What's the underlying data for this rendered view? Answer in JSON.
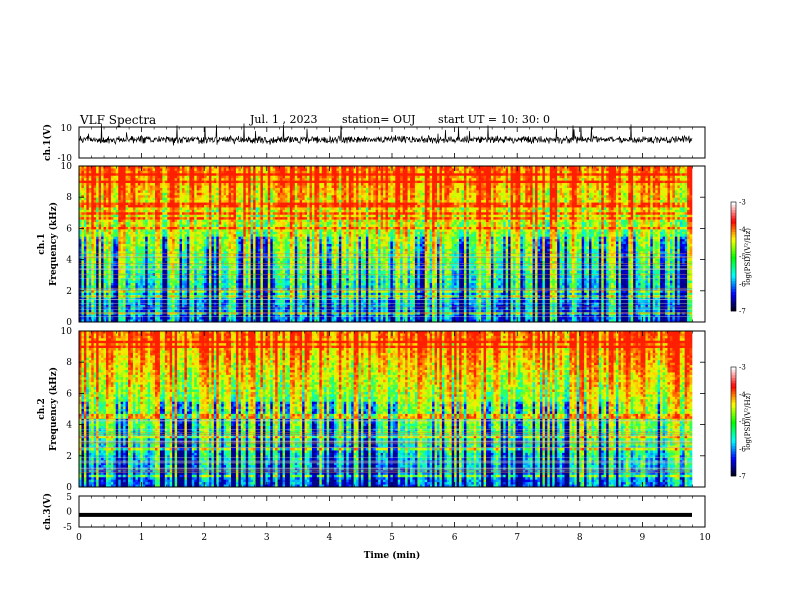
{
  "header": {
    "title": "VLF Spectra",
    "date": "Jul.  1  , 2023",
    "station": "station= OUJ",
    "start": "start  UT  =   10: 30: 0"
  },
  "chart_data": [
    {
      "type": "line",
      "name": "ch1-waveform",
      "ylabel": "ch.1(V)",
      "ylim": [
        -10,
        10
      ],
      "yticks": [
        "10",
        "-10"
      ],
      "xlim": [
        0,
        10
      ]
    },
    {
      "type": "heatmap",
      "name": "ch1-spectrogram",
      "ylabel": "ch.1\nFrequency (kHz)",
      "ylim": [
        0,
        10
      ],
      "yticks": [
        "0",
        "2",
        "4",
        "6",
        "8",
        "10"
      ],
      "colorbar": {
        "label": "log(PSD)(V²/Hz)",
        "range": [
          -7,
          -3
        ],
        "ticks": [
          "-3",
          "-4",
          "-5",
          "-6",
          "-7"
        ]
      }
    },
    {
      "type": "heatmap",
      "name": "ch2-spectrogram",
      "ylabel": "ch.2\nFrequency (kHz)",
      "ylim": [
        0,
        10
      ],
      "yticks": [
        "0",
        "2",
        "4",
        "6",
        "8",
        "10"
      ],
      "colorbar": {
        "label": "log(PSD)(V²/Hz)",
        "range": [
          -7,
          -3
        ],
        "ticks": [
          "-3",
          "-4",
          "-5",
          "-6",
          "-7"
        ]
      }
    },
    {
      "type": "line",
      "name": "ch3-waveform",
      "ylabel": "ch.3(V)",
      "ylim": [
        -5,
        5
      ],
      "yticks": [
        "5",
        "0",
        "-5"
      ],
      "value": -1.1,
      "xlim": [
        0,
        10
      ],
      "xticks": [
        "0",
        "1",
        "2",
        "3",
        "4",
        "5",
        "6",
        "7",
        "8",
        "9",
        "10"
      ],
      "xlabel": "Time (min)"
    }
  ],
  "colors": {
    "colormap": [
      "#000000",
      "#0000ff",
      "#00ffff",
      "#00ff00",
      "#ffff00",
      "#ff0000",
      "#ffffff"
    ],
    "trace": "#000000"
  }
}
